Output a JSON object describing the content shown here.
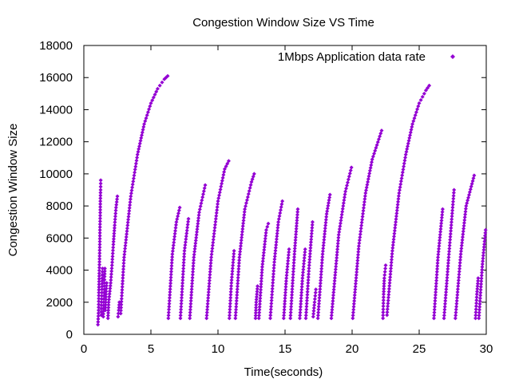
{
  "chart_data": {
    "type": "scatter",
    "title": "Congestion Window Size VS Time",
    "xlabel": "Time(seconds)",
    "ylabel": "Congestion Window Size",
    "xlim": [
      0,
      30
    ],
    "ylim": [
      0,
      18000
    ],
    "xticks": [
      "0",
      "5",
      "10",
      "15",
      "20",
      "25",
      "30"
    ],
    "yticks": [
      "0",
      "2000",
      "4000",
      "6000",
      "8000",
      "10000",
      "12000",
      "14000",
      "16000",
      "18000"
    ],
    "grid": false,
    "legend_position": "top-right",
    "marker_color": "#9400d3",
    "marker": "diamond",
    "series": [
      {
        "name": "1Mbps Application data rate",
        "points": [
          [
            1.05,
            600
          ],
          [
            1.1,
            1500
          ],
          [
            1.12,
            2600
          ],
          [
            1.15,
            3800
          ],
          [
            1.17,
            4700
          ],
          [
            1.19,
            5600
          ],
          [
            1.2,
            6500
          ],
          [
            1.22,
            7400
          ],
          [
            1.23,
            8300
          ],
          [
            1.25,
            9000
          ],
          [
            1.26,
            9600
          ],
          [
            1.3,
            1200
          ],
          [
            1.32,
            2000
          ],
          [
            1.35,
            2800
          ],
          [
            1.37,
            3500
          ],
          [
            1.4,
            4100
          ],
          [
            1.45,
            1100
          ],
          [
            1.47,
            1800
          ],
          [
            1.5,
            2400
          ],
          [
            1.52,
            3000
          ],
          [
            1.55,
            3600
          ],
          [
            1.57,
            4100
          ],
          [
            1.6,
            1500
          ],
          [
            1.65,
            2500
          ],
          [
            1.7,
            3200
          ],
          [
            1.8,
            1000
          ],
          [
            1.85,
            2000
          ],
          [
            2.0,
            3200
          ],
          [
            2.1,
            4300
          ],
          [
            2.2,
            5600
          ],
          [
            2.3,
            6800
          ],
          [
            2.4,
            7900
          ],
          [
            2.5,
            8600
          ],
          [
            2.55,
            1100
          ],
          [
            2.6,
            1500
          ],
          [
            2.65,
            2000
          ],
          [
            2.75,
            1300
          ],
          [
            3.0,
            4800
          ],
          [
            3.5,
            8600
          ],
          [
            4.0,
            11200
          ],
          [
            4.5,
            13100
          ],
          [
            5.0,
            14400
          ],
          [
            5.5,
            15300
          ],
          [
            6.0,
            15900
          ],
          [
            6.25,
            16100
          ],
          [
            6.3,
            1000
          ],
          [
            6.6,
            5000
          ],
          [
            6.9,
            7000
          ],
          [
            7.15,
            7900
          ],
          [
            7.2,
            1000
          ],
          [
            7.5,
            5200
          ],
          [
            7.8,
            7200
          ],
          [
            7.9,
            1000
          ],
          [
            8.2,
            4800
          ],
          [
            8.6,
            7600
          ],
          [
            9.05,
            9300
          ],
          [
            9.15,
            1000
          ],
          [
            9.5,
            4800
          ],
          [
            10.0,
            8300
          ],
          [
            10.5,
            10300
          ],
          [
            10.8,
            10800
          ],
          [
            10.85,
            1000
          ],
          [
            11.0,
            3200
          ],
          [
            11.2,
            5200
          ],
          [
            11.3,
            1000
          ],
          [
            11.6,
            4800
          ],
          [
            12.0,
            7800
          ],
          [
            12.5,
            9500
          ],
          [
            12.7,
            10000
          ],
          [
            12.8,
            1000
          ],
          [
            12.85,
            2000
          ],
          [
            12.95,
            3000
          ],
          [
            13.05,
            1000
          ],
          [
            13.3,
            4200
          ],
          [
            13.6,
            6500
          ],
          [
            13.75,
            6900
          ],
          [
            13.9,
            1000
          ],
          [
            14.2,
            4500
          ],
          [
            14.5,
            7000
          ],
          [
            14.8,
            8300
          ],
          [
            14.9,
            1000
          ],
          [
            15.1,
            3500
          ],
          [
            15.3,
            5300
          ],
          [
            15.4,
            1000
          ],
          [
            15.7,
            5000
          ],
          [
            15.95,
            7800
          ],
          [
            16.1,
            1000
          ],
          [
            16.3,
            3500
          ],
          [
            16.5,
            5300
          ],
          [
            16.55,
            1000
          ],
          [
            16.8,
            4300
          ],
          [
            17.05,
            7000
          ],
          [
            17.1,
            1100
          ],
          [
            17.2,
            2000
          ],
          [
            17.3,
            2800
          ],
          [
            17.45,
            1000
          ],
          [
            17.8,
            5000
          ],
          [
            18.1,
            7500
          ],
          [
            18.35,
            8700
          ],
          [
            18.45,
            1000
          ],
          [
            19.0,
            6200
          ],
          [
            19.5,
            8900
          ],
          [
            19.95,
            10400
          ],
          [
            20.05,
            1000
          ],
          [
            20.5,
            5500
          ],
          [
            21.0,
            8800
          ],
          [
            21.5,
            10900
          ],
          [
            22.2,
            12700
          ],
          [
            22.3,
            1000
          ],
          [
            22.35,
            2500
          ],
          [
            22.4,
            3500
          ],
          [
            22.5,
            4300
          ],
          [
            22.6,
            1200
          ],
          [
            23.0,
            5200
          ],
          [
            23.5,
            8800
          ],
          [
            24.0,
            11200
          ],
          [
            24.5,
            13100
          ],
          [
            25.0,
            14400
          ],
          [
            25.5,
            15200
          ],
          [
            25.75,
            15500
          ],
          [
            26.1,
            1000
          ],
          [
            26.4,
            4800
          ],
          [
            26.75,
            7800
          ],
          [
            26.85,
            1000
          ],
          [
            27.2,
            4800
          ],
          [
            27.6,
            9000
          ],
          [
            27.7,
            1000
          ],
          [
            28.1,
            5000
          ],
          [
            28.5,
            8000
          ],
          [
            29.1,
            9900
          ],
          [
            29.2,
            1000
          ],
          [
            29.3,
            2500
          ],
          [
            29.4,
            3500
          ],
          [
            29.45,
            1000
          ],
          [
            29.7,
            4200
          ],
          [
            29.95,
            6500
          ]
        ]
      }
    ]
  }
}
